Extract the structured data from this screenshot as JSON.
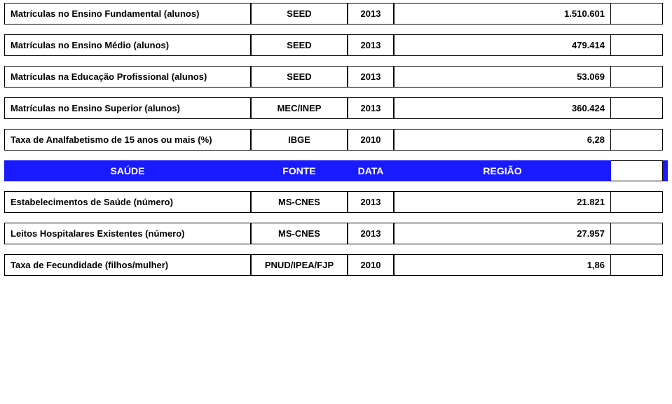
{
  "rows_top": [
    {
      "label": "Matrículas no Ensino Fundamental (alunos)",
      "src": "SEED",
      "year": "2013",
      "val": "1.510.601"
    },
    {
      "label": "Matrículas no Ensino Médio (alunos)",
      "src": "SEED",
      "year": "2013",
      "val": "479.414"
    },
    {
      "label": "Matrículas na Educação Profissional (alunos)",
      "src": "SEED",
      "year": "2013",
      "val": "53.069"
    },
    {
      "label": "Matrículas no Ensino Superior (alunos)",
      "src": "MEC/INEP",
      "year": "2013",
      "val": "360.424"
    },
    {
      "label": "Taxa de Analfabetismo de 15 anos ou mais (%)",
      "src": "IBGE",
      "year": "2010",
      "val": "6,28"
    }
  ],
  "header": {
    "c1": "SAÚDE",
    "c2": "FONTE",
    "c3": "DATA",
    "c4": "REGIÃO"
  },
  "rows_bottom": [
    {
      "label": "Estabelecimentos de Saúde (número)",
      "src": "MS-CNES",
      "year": "2013",
      "val": "21.821"
    },
    {
      "label": "Leitos Hospitalares Existentes (número)",
      "src": "MS-CNES",
      "year": "2013",
      "val": "27.957"
    },
    {
      "label": "Taxa de Fecundidade (filhos/mulher)",
      "src": "PNUD/IPEA/FJP",
      "year": "2010",
      "val": "1,86"
    }
  ],
  "colors": {
    "header_bg": "#1a1aff",
    "header_fg": "#ffffff",
    "border": "#000000",
    "page_bg": "#ffffff"
  }
}
